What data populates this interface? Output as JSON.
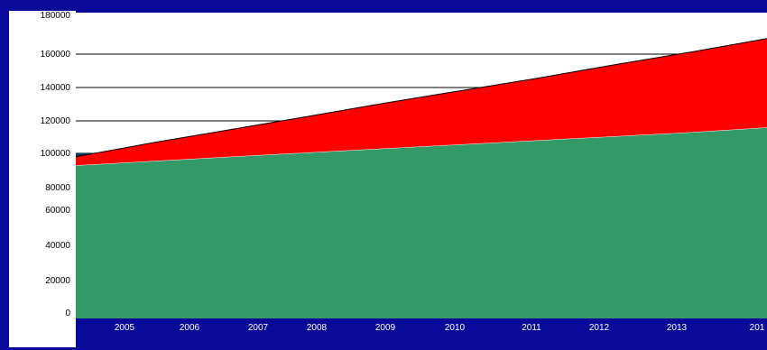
{
  "colors": {
    "background": "#0a0a9a",
    "plot_area": "#ffffff",
    "left_panel": "#ffffff",
    "grid": "#000000",
    "bottom_band": "#0a0a9a",
    "dark_band": "#123a63"
  },
  "chart_data": {
    "type": "area",
    "stacked": true,
    "title": "",
    "xlabel": "",
    "ylabel": "",
    "x": [
      "2005",
      "2006",
      "2007",
      "2008",
      "2009",
      "2010",
      "2011",
      "2012",
      "2013",
      "201"
    ],
    "series": [
      {
        "color": "#339966",
        "values": [
          93000,
          95500,
          98000,
          100500,
          103000,
          105500,
          108000,
          110500,
          113000,
          116000
        ]
      },
      {
        "color": "#ff0000",
        "values": [
          5000,
          11000,
          16500,
          22000,
          27500,
          32500,
          37500,
          43000,
          48000,
          52000
        ]
      }
    ],
    "y_ticks": [
      "0",
      "20000",
      "40000",
      "60000",
      "80000",
      "100000",
      "120000",
      "140000",
      "160000",
      "180000"
    ],
    "gridlines": [
      100000,
      120000,
      140000,
      160000
    ],
    "ylim": [
      0,
      180000
    ],
    "grid": true,
    "legend": "none"
  }
}
